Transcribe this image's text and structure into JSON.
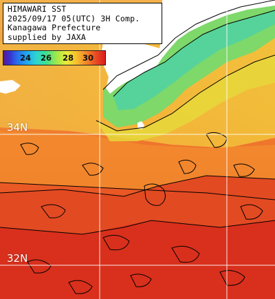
{
  "info_box": {
    "lines": [
      "HIMAWARI SST",
      "2025/09/17 05(UTC) 3H Comp.",
      "Kanagawa Prefecture",
      "supplied by JAXA"
    ]
  },
  "colorbar": {
    "ticks": [
      "24",
      "26",
      "28",
      "30"
    ]
  },
  "grid_labels": {
    "lat_34": "34N",
    "lat_32": "32N"
  },
  "colors": {
    "cold": "#3fe08f",
    "mid": "#f6c32d",
    "warm": "#f38a2a",
    "hot": "#d81e1e",
    "land": "#ffffff",
    "contour": "#000000",
    "grid": "#ffffff"
  }
}
